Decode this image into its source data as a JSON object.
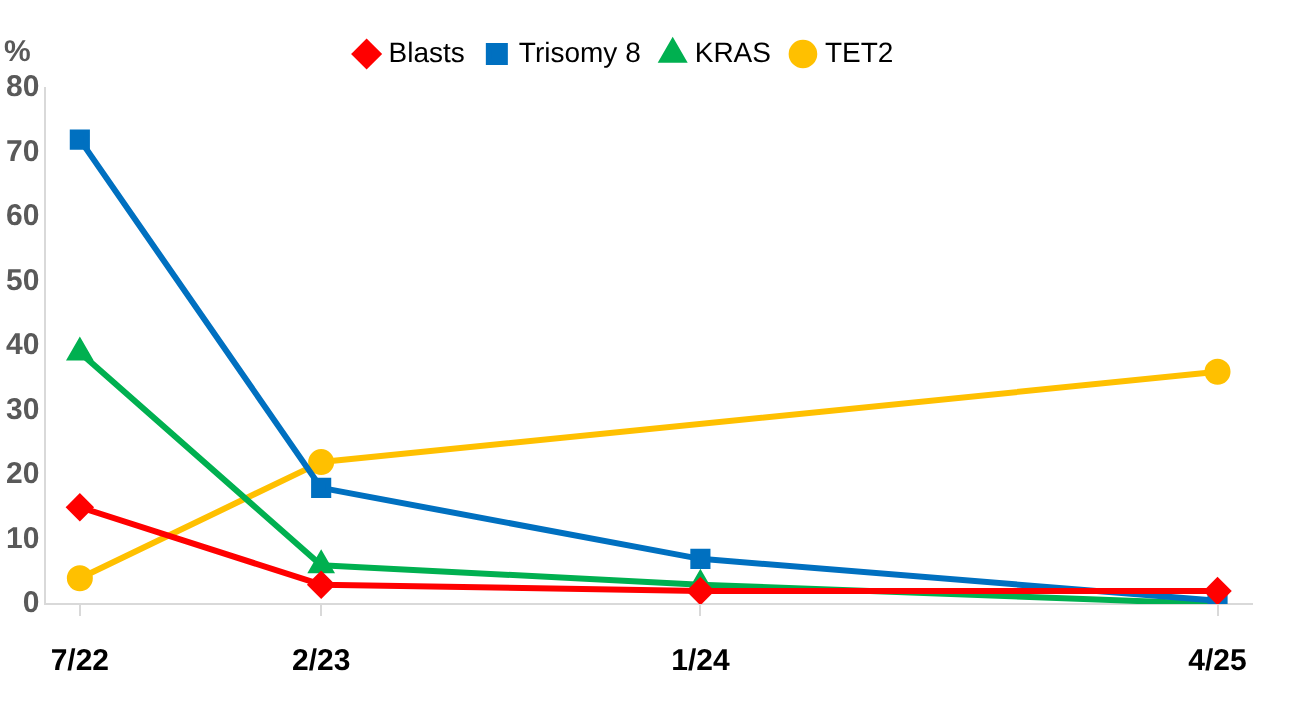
{
  "chart_data": {
    "type": "line",
    "ylabel": "%",
    "x": [
      "2022-07",
      "2023-02",
      "2024-01",
      "2025-04"
    ],
    "xlim": [
      "2022-06",
      "2025-05"
    ],
    "xticks": [
      {
        "value": "2022-07",
        "label": "7/22"
      },
      {
        "value": "2023-02",
        "label": "2/23"
      },
      {
        "value": "2024-01",
        "label": "1/24"
      },
      {
        "value": "2025-04",
        "label": "4/25"
      }
    ],
    "ylim": [
      0,
      80
    ],
    "yticks": [
      0,
      10,
      20,
      30,
      40,
      50,
      60,
      70,
      80
    ],
    "grid": false,
    "legend": "top",
    "series": [
      {
        "name": "Blasts",
        "color": "#ff0000",
        "marker": "diamond",
        "values": [
          15,
          3,
          2,
          2
        ]
      },
      {
        "name": "Trisomy 8",
        "color": "#0070c0",
        "marker": "square",
        "values": [
          72,
          18,
          7,
          0.5
        ]
      },
      {
        "name": "KRAS",
        "color": "#00b050",
        "marker": "triangle",
        "values": [
          39,
          6,
          3,
          0
        ]
      },
      {
        "name": "TET2",
        "color": "#ffc000",
        "marker": "circle",
        "x": [
          "2022-07",
          "2023-02",
          "2025-04"
        ],
        "values": [
          4,
          22,
          36
        ]
      }
    ]
  }
}
